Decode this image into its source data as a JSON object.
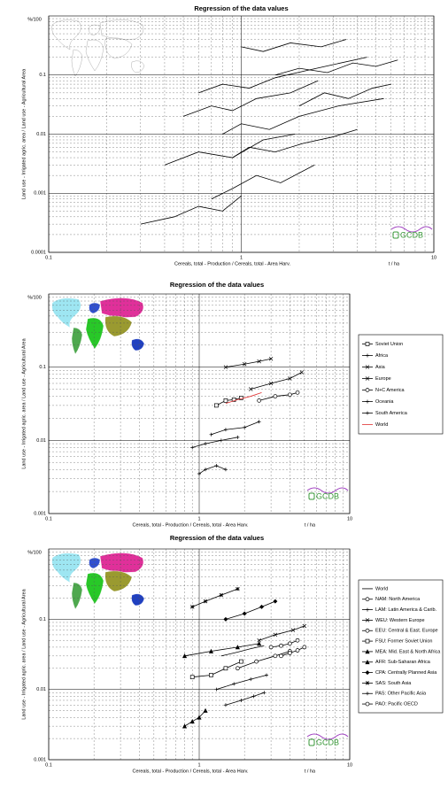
{
  "chart_data": [
    {
      "type": "line",
      "title": "Regression  of  the data values",
      "x_label": "Cereals, total - Production / Cereals, total - Area Harv.",
      "x_unit": "t / ha",
      "y_label": "Land use - Irrigated agric. area / Land use - Agricultural Area",
      "y_unit": "%/100",
      "log_x": true,
      "log_y": true,
      "grid": true,
      "minor_grid": true,
      "xlim": [
        0.1,
        10
      ],
      "xticks": [
        0.1,
        1,
        10
      ],
      "ylim": [
        0.0001,
        1
      ],
      "yticks": [
        0.0001,
        0.001,
        0.01,
        0.1
      ],
      "logo": "GCDB",
      "series": [
        {
          "color": "#000000",
          "x": [
            0.6,
            0.8,
            1.1,
            1.5,
            2.2,
            3.0,
            4.5
          ],
          "values": [
            0.05,
            0.07,
            0.06,
            0.09,
            0.12,
            0.15,
            0.2
          ]
        },
        {
          "color": "#000000",
          "x": [
            0.5,
            0.7,
            0.9,
            1.2,
            1.8,
            2.5
          ],
          "values": [
            0.02,
            0.03,
            0.025,
            0.04,
            0.05,
            0.08
          ]
        },
        {
          "color": "#000000",
          "x": [
            0.8,
            1.0,
            1.4,
            2.0,
            3.2,
            5.5
          ],
          "values": [
            0.01,
            0.015,
            0.012,
            0.02,
            0.03,
            0.04
          ]
        },
        {
          "color": "#000000",
          "x": [
            0.4,
            0.6,
            0.9,
            1.3,
            1.9
          ],
          "values": [
            0.003,
            0.005,
            0.004,
            0.008,
            0.01
          ]
        },
        {
          "color": "#000000",
          "x": [
            0.7,
            0.9,
            1.2,
            1.6,
            2.4
          ],
          "values": [
            0.0008,
            0.0012,
            0.002,
            0.0015,
            0.003
          ]
        },
        {
          "color": "#000000",
          "x": [
            0.3,
            0.45,
            0.6,
            0.8,
            1.0
          ],
          "values": [
            0.0003,
            0.0004,
            0.0006,
            0.0005,
            0.0009
          ]
        },
        {
          "color": "#000000",
          "x": [
            1.5,
            2.0,
            2.8,
            3.8,
            5.0,
            6.5
          ],
          "values": [
            0.1,
            0.13,
            0.11,
            0.16,
            0.14,
            0.18
          ]
        },
        {
          "color": "#000000",
          "x": [
            1.0,
            1.3,
            1.8,
            2.6,
            3.5
          ],
          "values": [
            0.3,
            0.25,
            0.35,
            0.3,
            0.4
          ]
        },
        {
          "color": "#000000",
          "x": [
            0.9,
            1.1,
            1.5,
            2.1,
            3.0,
            4.0
          ],
          "values": [
            0.004,
            0.006,
            0.005,
            0.007,
            0.009,
            0.012
          ]
        },
        {
          "color": "#000000",
          "x": [
            2.0,
            2.7,
            3.6,
            4.8,
            6.0
          ],
          "values": [
            0.03,
            0.05,
            0.04,
            0.06,
            0.07
          ]
        }
      ]
    },
    {
      "type": "line",
      "title": "Regression  of  the data values",
      "x_label": "Cereals, total - Production / Cereals, total - Area Harv.",
      "x_unit": "t / ha",
      "y_label": "Land use - Irrigated agric. area / Land use - Agricultural Area",
      "y_unit": "%/100",
      "log_x": true,
      "log_y": true,
      "grid": true,
      "minor_grid": true,
      "legend": "right",
      "xlim": [
        0.1,
        10
      ],
      "xticks": [
        0.1,
        1,
        10
      ],
      "ylim": [
        0.001,
        1
      ],
      "yticks": [
        0.001,
        0.01,
        0.1
      ],
      "logo": "GCDB",
      "series": [
        {
          "name": "Soviet Union",
          "color": "#000000",
          "marker": "square",
          "x": [
            1.3,
            1.5,
            1.7,
            1.9
          ],
          "values": [
            0.03,
            0.035,
            0.036,
            0.038
          ]
        },
        {
          "name": "Africa",
          "color": "#000000",
          "marker": "plus",
          "x": [
            0.9,
            1.1,
            1.4,
            1.8
          ],
          "values": [
            0.008,
            0.009,
            0.01,
            0.011
          ]
        },
        {
          "name": "Asia",
          "color": "#000000",
          "marker": "x",
          "x": [
            1.5,
            2.0,
            2.5,
            3.0
          ],
          "values": [
            0.1,
            0.11,
            0.12,
            0.13
          ]
        },
        {
          "name": "Europe",
          "color": "#000000",
          "marker": "x",
          "x": [
            2.2,
            3.0,
            4.0,
            4.8
          ],
          "values": [
            0.05,
            0.06,
            0.07,
            0.085
          ]
        },
        {
          "name": "N+C America",
          "color": "#000000",
          "marker": "circle",
          "x": [
            2.5,
            3.2,
            4.0,
            4.5
          ],
          "values": [
            0.035,
            0.04,
            0.042,
            0.045
          ]
        },
        {
          "name": "Oceania",
          "color": "#000000",
          "marker": "plus",
          "x": [
            1.0,
            1.1,
            1.3,
            1.5
          ],
          "values": [
            0.0035,
            0.004,
            0.0045,
            0.004
          ]
        },
        {
          "name": "South America",
          "color": "#000000",
          "marker": "plus",
          "x": [
            1.2,
            1.5,
            2.0,
            2.5
          ],
          "values": [
            0.012,
            0.014,
            0.015,
            0.018
          ]
        },
        {
          "name": "World",
          "color": "#e03030",
          "marker": "none",
          "x": [
            1.5,
            1.8,
            2.2,
            2.6
          ],
          "values": [
            0.032,
            0.036,
            0.04,
            0.045
          ]
        }
      ]
    },
    {
      "type": "line",
      "title": "Regression  of  the data values",
      "x_label": "Cereals, total - Production / Cereals, total - Area Harv.",
      "x_unit": "t / ha",
      "y_label": "Land use - Irrigated agric. area / Land use - Agricultural Area",
      "y_unit": "%/100",
      "log_x": true,
      "log_y": true,
      "grid": true,
      "minor_grid": true,
      "legend": "right",
      "xlim": [
        0.1,
        10
      ],
      "xticks": [
        0.1,
        1,
        10
      ],
      "ylim": [
        0.001,
        1
      ],
      "yticks": [
        0.001,
        0.01,
        0.1
      ],
      "logo": "GCDB",
      "series": [
        {
          "name": "World",
          "color": "#000000",
          "marker": "none",
          "x": [
            1.4,
            1.8,
            2.2,
            2.7
          ],
          "values": [
            0.03,
            0.034,
            0.038,
            0.042
          ]
        },
        {
          "name": "NAM: North America",
          "color": "#000000",
          "marker": "circle",
          "x": [
            3.0,
            3.5,
            4.0,
            4.5
          ],
          "values": [
            0.04,
            0.042,
            0.045,
            0.05
          ]
        },
        {
          "name": "LAM: Latin America & Carib.",
          "color": "#000000",
          "marker": "plus",
          "x": [
            1.3,
            1.7,
            2.2,
            2.8
          ],
          "values": [
            0.01,
            0.012,
            0.014,
            0.016
          ]
        },
        {
          "name": "WEU: Western Europe",
          "color": "#000000",
          "marker": "x",
          "x": [
            2.5,
            3.2,
            4.2,
            5.0
          ],
          "values": [
            0.05,
            0.06,
            0.07,
            0.08
          ]
        },
        {
          "name": "EEU: Central & East. Europe",
          "color": "#000000",
          "marker": "circle",
          "x": [
            1.8,
            2.4,
            3.2,
            4.0
          ],
          "values": [
            0.02,
            0.025,
            0.03,
            0.035
          ]
        },
        {
          "name": "FSU: Former Soviet Union",
          "color": "#000000",
          "marker": "square",
          "x": [
            0.9,
            1.2,
            1.5,
            1.9
          ],
          "values": [
            0.015,
            0.016,
            0.02,
            0.025
          ]
        },
        {
          "name": "MEA: Mid. East & North Africa",
          "color": "#000000",
          "marker": "triangle",
          "x": [
            0.8,
            1.2,
            1.8,
            2.5
          ],
          "values": [
            0.03,
            0.035,
            0.04,
            0.045
          ]
        },
        {
          "name": "AFR: Sub-Saharan Africa",
          "color": "#000000",
          "marker": "triangle",
          "x": [
            0.8,
            0.9,
            1.0,
            1.1
          ],
          "values": [
            0.003,
            0.0035,
            0.004,
            0.005
          ]
        },
        {
          "name": "CPA: Centrally Planned Asia",
          "color": "#000000",
          "marker": "diamond",
          "x": [
            1.5,
            2.0,
            2.6,
            3.2
          ],
          "values": [
            0.1,
            0.12,
            0.15,
            0.18
          ]
        },
        {
          "name": "SAS: South Asia",
          "color": "#000000",
          "marker": "star",
          "x": [
            0.9,
            1.1,
            1.4,
            1.8
          ],
          "values": [
            0.15,
            0.18,
            0.22,
            0.27
          ]
        },
        {
          "name": "PAS: Other Pacific Asia",
          "color": "#000000",
          "marker": "plus",
          "x": [
            1.5,
            1.9,
            2.3,
            2.7
          ],
          "values": [
            0.006,
            0.007,
            0.008,
            0.009
          ]
        },
        {
          "name": "PAO: Pacific OECD",
          "color": "#000000",
          "marker": "circle",
          "x": [
            3.5,
            4.0,
            4.5,
            5.0
          ],
          "values": [
            0.03,
            0.033,
            0.036,
            0.04
          ]
        }
      ]
    }
  ]
}
